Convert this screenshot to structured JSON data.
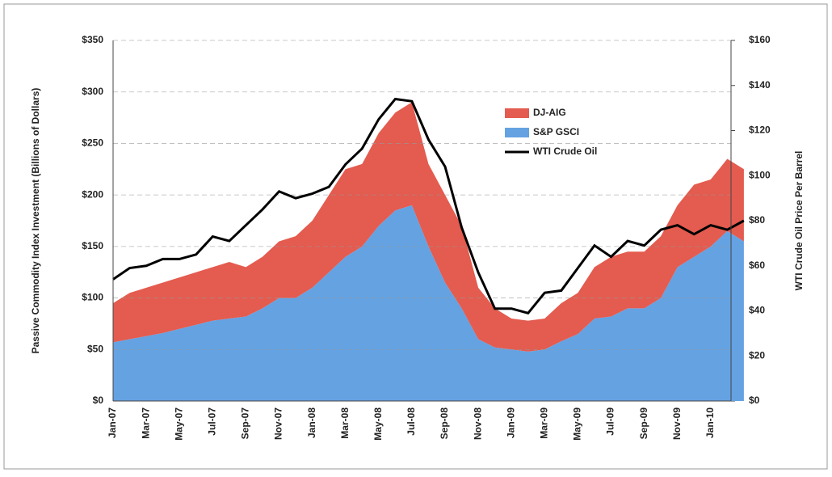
{
  "chart_data": {
    "type": "stacked-area-line",
    "y_label": "Passive Commodity Index Investment (Billions of Dollars)",
    "y2_label": "WTI Crude Oil Price Per Barrel",
    "categories": [
      "Jan-07",
      null,
      "Mar-07",
      null,
      "May-07",
      null,
      "Jul-07",
      null,
      "Sep-07",
      null,
      "Nov-07",
      null,
      "Jan-08",
      null,
      "Mar-08",
      null,
      "May-08",
      null,
      "Jul-08",
      null,
      "Sep-08",
      null,
      "Nov-08",
      null,
      "Jan-09",
      null,
      "Mar-09",
      null,
      "May-09",
      null,
      "Jul-09",
      null,
      "Sep-09",
      null,
      "Nov-09",
      null,
      "Jan-10",
      null,
      null
    ],
    "series": [
      {
        "name": "DJ-AIG",
        "color": "#e45b4f",
        "values": [
          38,
          45,
          47,
          49,
          50,
          51,
          52,
          55,
          48,
          50,
          55,
          60,
          65,
          75,
          85,
          80,
          90,
          95,
          100,
          80,
          85,
          80,
          50,
          38,
          30,
          30,
          30,
          37,
          40,
          50,
          58,
          55,
          55,
          60,
          60,
          70,
          65,
          70,
          70
        ]
      },
      {
        "name": "S&P GSCI",
        "color": "#64a2e2",
        "values": [
          57,
          60,
          63,
          66,
          70,
          74,
          78,
          80,
          82,
          90,
          100,
          100,
          110,
          125,
          140,
          150,
          170,
          185,
          190,
          150,
          115,
          90,
          60,
          52,
          50,
          48,
          50,
          58,
          65,
          80,
          82,
          90,
          90,
          100,
          130,
          140,
          150,
          165,
          155
        ]
      },
      {
        "name": "WTI Crude Oil",
        "color": "#000000",
        "axis": "y2",
        "values": [
          54,
          59,
          60,
          63,
          63,
          65,
          73,
          71,
          78,
          85,
          93,
          90,
          92,
          95,
          105,
          112,
          125,
          134,
          133,
          116,
          104,
          77,
          57,
          41,
          41,
          39,
          48,
          49,
          59,
          69,
          64,
          71,
          69,
          76,
          78,
          74,
          78,
          76,
          80
        ]
      }
    ],
    "ylim": [
      0,
      350
    ],
    "yticks": [
      {
        "value": 0,
        "label": "$0"
      },
      {
        "value": 50,
        "label": "$50"
      },
      {
        "value": 100,
        "label": "$100"
      },
      {
        "value": 150,
        "label": "$150"
      },
      {
        "value": 200,
        "label": "$200"
      },
      {
        "value": 250,
        "label": "$250"
      },
      {
        "value": 300,
        "label": "$300"
      },
      {
        "value": 350,
        "label": "$350"
      }
    ],
    "y2lim": [
      0,
      160
    ],
    "y2ticks": [
      {
        "value": 0,
        "label": "$0"
      },
      {
        "value": 20,
        "label": "$20"
      },
      {
        "value": 40,
        "label": "$40"
      },
      {
        "value": 60,
        "label": "$60"
      },
      {
        "value": 80,
        "label": "$80"
      },
      {
        "value": 100,
        "label": "$100"
      },
      {
        "value": 120,
        "label": "$120"
      },
      {
        "value": 140,
        "label": "$140"
      },
      {
        "value": 160,
        "label": "$160"
      }
    ],
    "grid": true
  }
}
